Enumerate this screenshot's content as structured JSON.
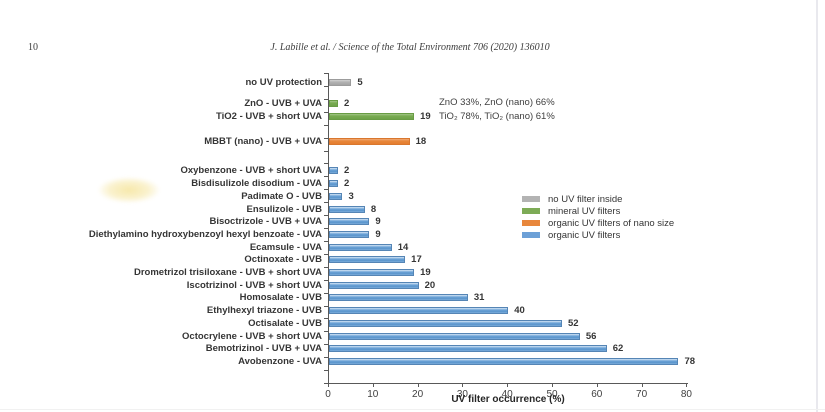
{
  "page": {
    "page_number": "10",
    "running_head": "J. Labille et al. / Science of the Total Environment 706 (2020) 136010"
  },
  "chart_data": {
    "type": "bar",
    "orientation": "horizontal",
    "xlabel": "UV filter occurrence (%)",
    "xlim": [
      0,
      80
    ],
    "x_ticks": [
      0,
      10,
      20,
      30,
      40,
      50,
      60,
      70,
      80
    ],
    "grid": false,
    "legend_position": "middle-right",
    "annotations": [
      "ZnO 33%, ZnO (nano) 66%",
      "TiO₂ 78%, TiO₂ (nano) 61%"
    ],
    "legend": [
      {
        "color_key": "no-filter",
        "label": "no UV filter inside",
        "color": "#b3b3b3"
      },
      {
        "color_key": "mineral",
        "label": "mineral UV filters",
        "color": "#7dab56"
      },
      {
        "color_key": "organic-nano",
        "label": "organic UV filters of nano size",
        "color": "#e8873c"
      },
      {
        "color_key": "organic",
        "label": "organic UV filters",
        "color": "#6ca0d7"
      }
    ],
    "groups": [
      {
        "color_key": "no-filter",
        "legend": "no UV filter inside",
        "bars": [
          {
            "label": "no UV protection",
            "value": 5
          }
        ]
      },
      {
        "color_key": "mineral",
        "legend": "mineral UV filters",
        "bars": [
          {
            "label": "ZnO - UVB + UVA",
            "value": 2
          },
          {
            "label": "TiO2 - UVB + short UVA",
            "value": 19
          }
        ]
      },
      {
        "color_key": "organic-nano",
        "legend": "organic UV filters of nano size",
        "bars": [
          {
            "label": "MBBT (nano) - UVB + UVA",
            "value": 18
          }
        ]
      },
      {
        "color_key": "organic",
        "legend": "organic UV filters",
        "bars": [
          {
            "label": "Oxybenzone - UVB + short UVA",
            "value": 2
          },
          {
            "label": "Bisdisulizole disodium - UVA",
            "value": 2
          },
          {
            "label": "Padimate O - UVB",
            "value": 3
          },
          {
            "label": "Ensulizole - UVB",
            "value": 8
          },
          {
            "label": "Bisoctrizole - UVB + UVA",
            "value": 9
          },
          {
            "label": "Diethylamino hydroxybenzoyl hexyl benzoate - UVA",
            "value": 9
          },
          {
            "label": "Ecamsule - UVA",
            "value": 14
          },
          {
            "label": "Octinoxate - UVB",
            "value": 17
          },
          {
            "label": "Drometrizol trisiloxane - UVB + short UVA",
            "value": 19
          },
          {
            "label": "Iscotrizinol - UVB + short UVA",
            "value": 20
          },
          {
            "label": "Homosalate - UVB",
            "value": 31
          },
          {
            "label": "Ethylhexyl triazone - UVB",
            "value": 40
          },
          {
            "label": "Octisalate - UVB",
            "value": 52
          },
          {
            "label": "Octocrylene - UVB + short UVA",
            "value": 56
          },
          {
            "label": "Bemotrizinol - UVB + UVA",
            "value": 62
          },
          {
            "label": "Avobenzone - UVA",
            "value": 78
          }
        ]
      }
    ]
  }
}
